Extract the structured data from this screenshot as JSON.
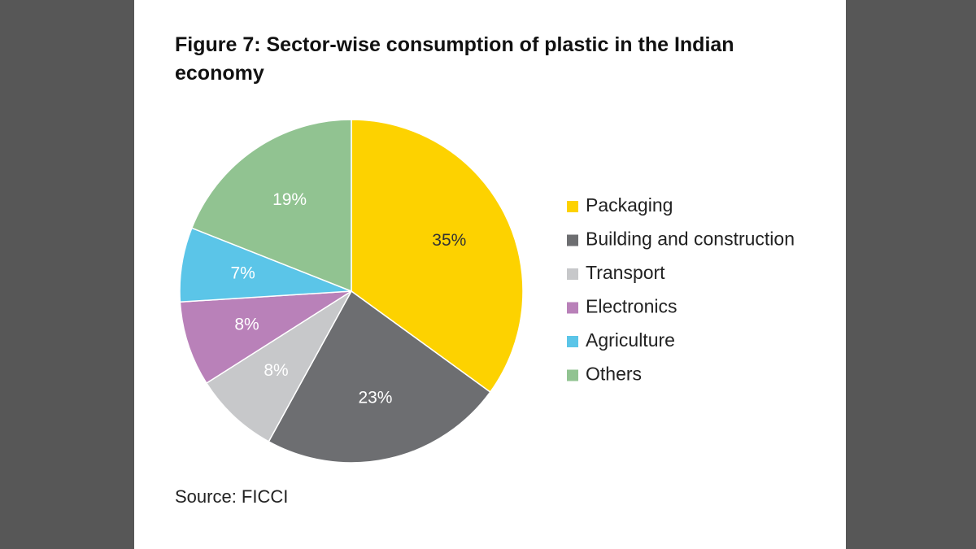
{
  "chart_data": {
    "type": "pie",
    "title": "Figure 7: Sector-wise consumption of plastic in the Indian economy",
    "categories": [
      "Packaging",
      "Building and construction",
      "Transport",
      "Electronics",
      "Agriculture",
      "Others"
    ],
    "values": [
      35,
      23,
      8,
      8,
      7,
      19
    ],
    "value_labels": [
      "35%",
      "23%",
      "8%",
      "8%",
      "7%",
      "19%"
    ],
    "colors": [
      "#fdd200",
      "#6d6e71",
      "#c7c8ca",
      "#b981b9",
      "#5bc5e8",
      "#91c391"
    ],
    "source": "Source: FICCI"
  }
}
